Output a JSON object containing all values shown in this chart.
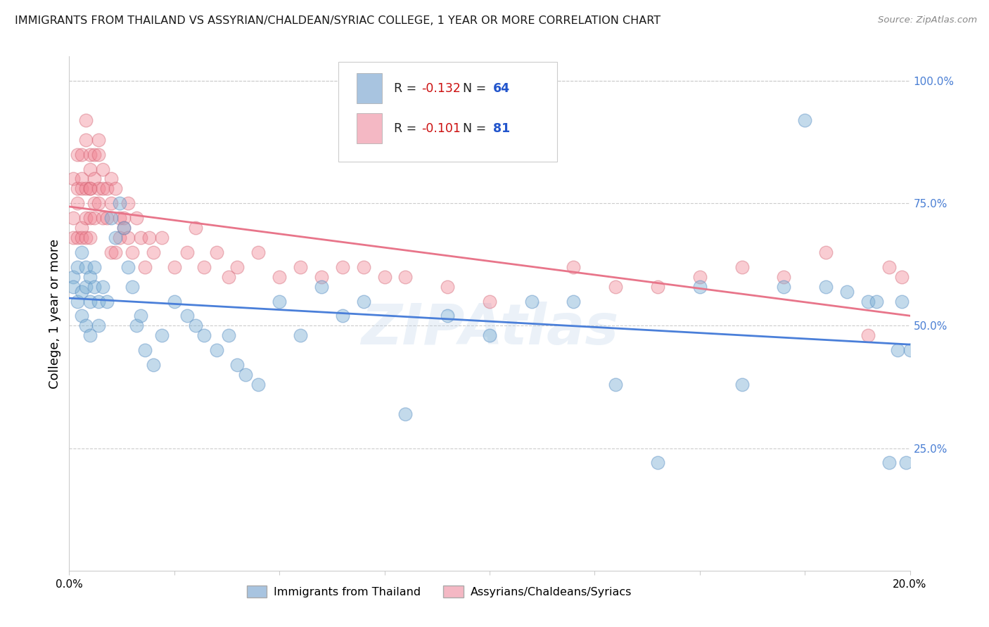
{
  "title": "IMMIGRANTS FROM THAILAND VS ASSYRIAN/CHALDEAN/SYRIAC COLLEGE, 1 YEAR OR MORE CORRELATION CHART",
  "source": "Source: ZipAtlas.com",
  "ylabel": "College, 1 year or more",
  "legend_label1": "Immigrants from Thailand",
  "legend_label2": "Assyrians/Chaldeans/Syriacs",
  "blue_color": "#7bafd4",
  "pink_color": "#f08090",
  "blue_edge": "#5a8fc4",
  "pink_edge": "#d06070",
  "blue_line_color": "#4a7fd9",
  "pink_line_color": "#e8758a",
  "blue_legend_color": "#a8c4e0",
  "pink_legend_color": "#f4b8c4",
  "watermark": "ZIPAtlas",
  "blue_R": -0.132,
  "blue_N": 64,
  "pink_R": -0.101,
  "pink_N": 81,
  "xlim": [
    0.0,
    0.2
  ],
  "ylim": [
    0.0,
    1.05
  ],
  "blue_scatter_x": [
    0.001,
    0.001,
    0.002,
    0.002,
    0.003,
    0.003,
    0.003,
    0.004,
    0.004,
    0.004,
    0.005,
    0.005,
    0.005,
    0.006,
    0.006,
    0.007,
    0.007,
    0.008,
    0.009,
    0.01,
    0.011,
    0.012,
    0.013,
    0.014,
    0.015,
    0.016,
    0.017,
    0.018,
    0.02,
    0.022,
    0.025,
    0.028,
    0.03,
    0.032,
    0.035,
    0.038,
    0.04,
    0.042,
    0.045,
    0.05,
    0.055,
    0.06,
    0.065,
    0.07,
    0.08,
    0.09,
    0.1,
    0.11,
    0.12,
    0.13,
    0.14,
    0.15,
    0.16,
    0.17,
    0.175,
    0.18,
    0.185,
    0.19,
    0.192,
    0.195,
    0.197,
    0.198,
    0.199,
    0.2
  ],
  "blue_scatter_y": [
    0.6,
    0.58,
    0.62,
    0.55,
    0.57,
    0.52,
    0.65,
    0.58,
    0.5,
    0.62,
    0.6,
    0.55,
    0.48,
    0.62,
    0.58,
    0.55,
    0.5,
    0.58,
    0.55,
    0.72,
    0.68,
    0.75,
    0.7,
    0.62,
    0.58,
    0.5,
    0.52,
    0.45,
    0.42,
    0.48,
    0.55,
    0.52,
    0.5,
    0.48,
    0.45,
    0.48,
    0.42,
    0.4,
    0.38,
    0.55,
    0.48,
    0.58,
    0.52,
    0.55,
    0.32,
    0.52,
    0.48,
    0.55,
    0.55,
    0.38,
    0.22,
    0.58,
    0.38,
    0.58,
    0.92,
    0.58,
    0.57,
    0.55,
    0.55,
    0.22,
    0.45,
    0.55,
    0.22,
    0.45
  ],
  "pink_scatter_x": [
    0.001,
    0.001,
    0.001,
    0.002,
    0.002,
    0.002,
    0.002,
    0.003,
    0.003,
    0.003,
    0.003,
    0.003,
    0.004,
    0.004,
    0.004,
    0.004,
    0.004,
    0.005,
    0.005,
    0.005,
    0.005,
    0.005,
    0.005,
    0.006,
    0.006,
    0.006,
    0.006,
    0.007,
    0.007,
    0.007,
    0.007,
    0.008,
    0.008,
    0.008,
    0.009,
    0.009,
    0.01,
    0.01,
    0.01,
    0.011,
    0.011,
    0.012,
    0.012,
    0.013,
    0.013,
    0.014,
    0.014,
    0.015,
    0.016,
    0.017,
    0.018,
    0.019,
    0.02,
    0.022,
    0.025,
    0.028,
    0.03,
    0.032,
    0.035,
    0.038,
    0.04,
    0.045,
    0.05,
    0.055,
    0.06,
    0.065,
    0.07,
    0.075,
    0.08,
    0.09,
    0.1,
    0.12,
    0.13,
    0.14,
    0.15,
    0.16,
    0.17,
    0.18,
    0.19,
    0.195,
    0.198
  ],
  "pink_scatter_y": [
    0.72,
    0.8,
    0.68,
    0.85,
    0.75,
    0.68,
    0.78,
    0.7,
    0.85,
    0.78,
    0.68,
    0.8,
    0.92,
    0.88,
    0.78,
    0.72,
    0.68,
    0.78,
    0.82,
    0.72,
    0.68,
    0.78,
    0.85,
    0.85,
    0.72,
    0.8,
    0.75,
    0.78,
    0.85,
    0.88,
    0.75,
    0.82,
    0.78,
    0.72,
    0.78,
    0.72,
    0.8,
    0.75,
    0.65,
    0.78,
    0.65,
    0.72,
    0.68,
    0.72,
    0.7,
    0.68,
    0.75,
    0.65,
    0.72,
    0.68,
    0.62,
    0.68,
    0.65,
    0.68,
    0.62,
    0.65,
    0.7,
    0.62,
    0.65,
    0.6,
    0.62,
    0.65,
    0.6,
    0.62,
    0.6,
    0.62,
    0.62,
    0.6,
    0.6,
    0.58,
    0.55,
    0.62,
    0.58,
    0.58,
    0.6,
    0.62,
    0.6,
    0.65,
    0.48,
    0.62,
    0.6
  ]
}
